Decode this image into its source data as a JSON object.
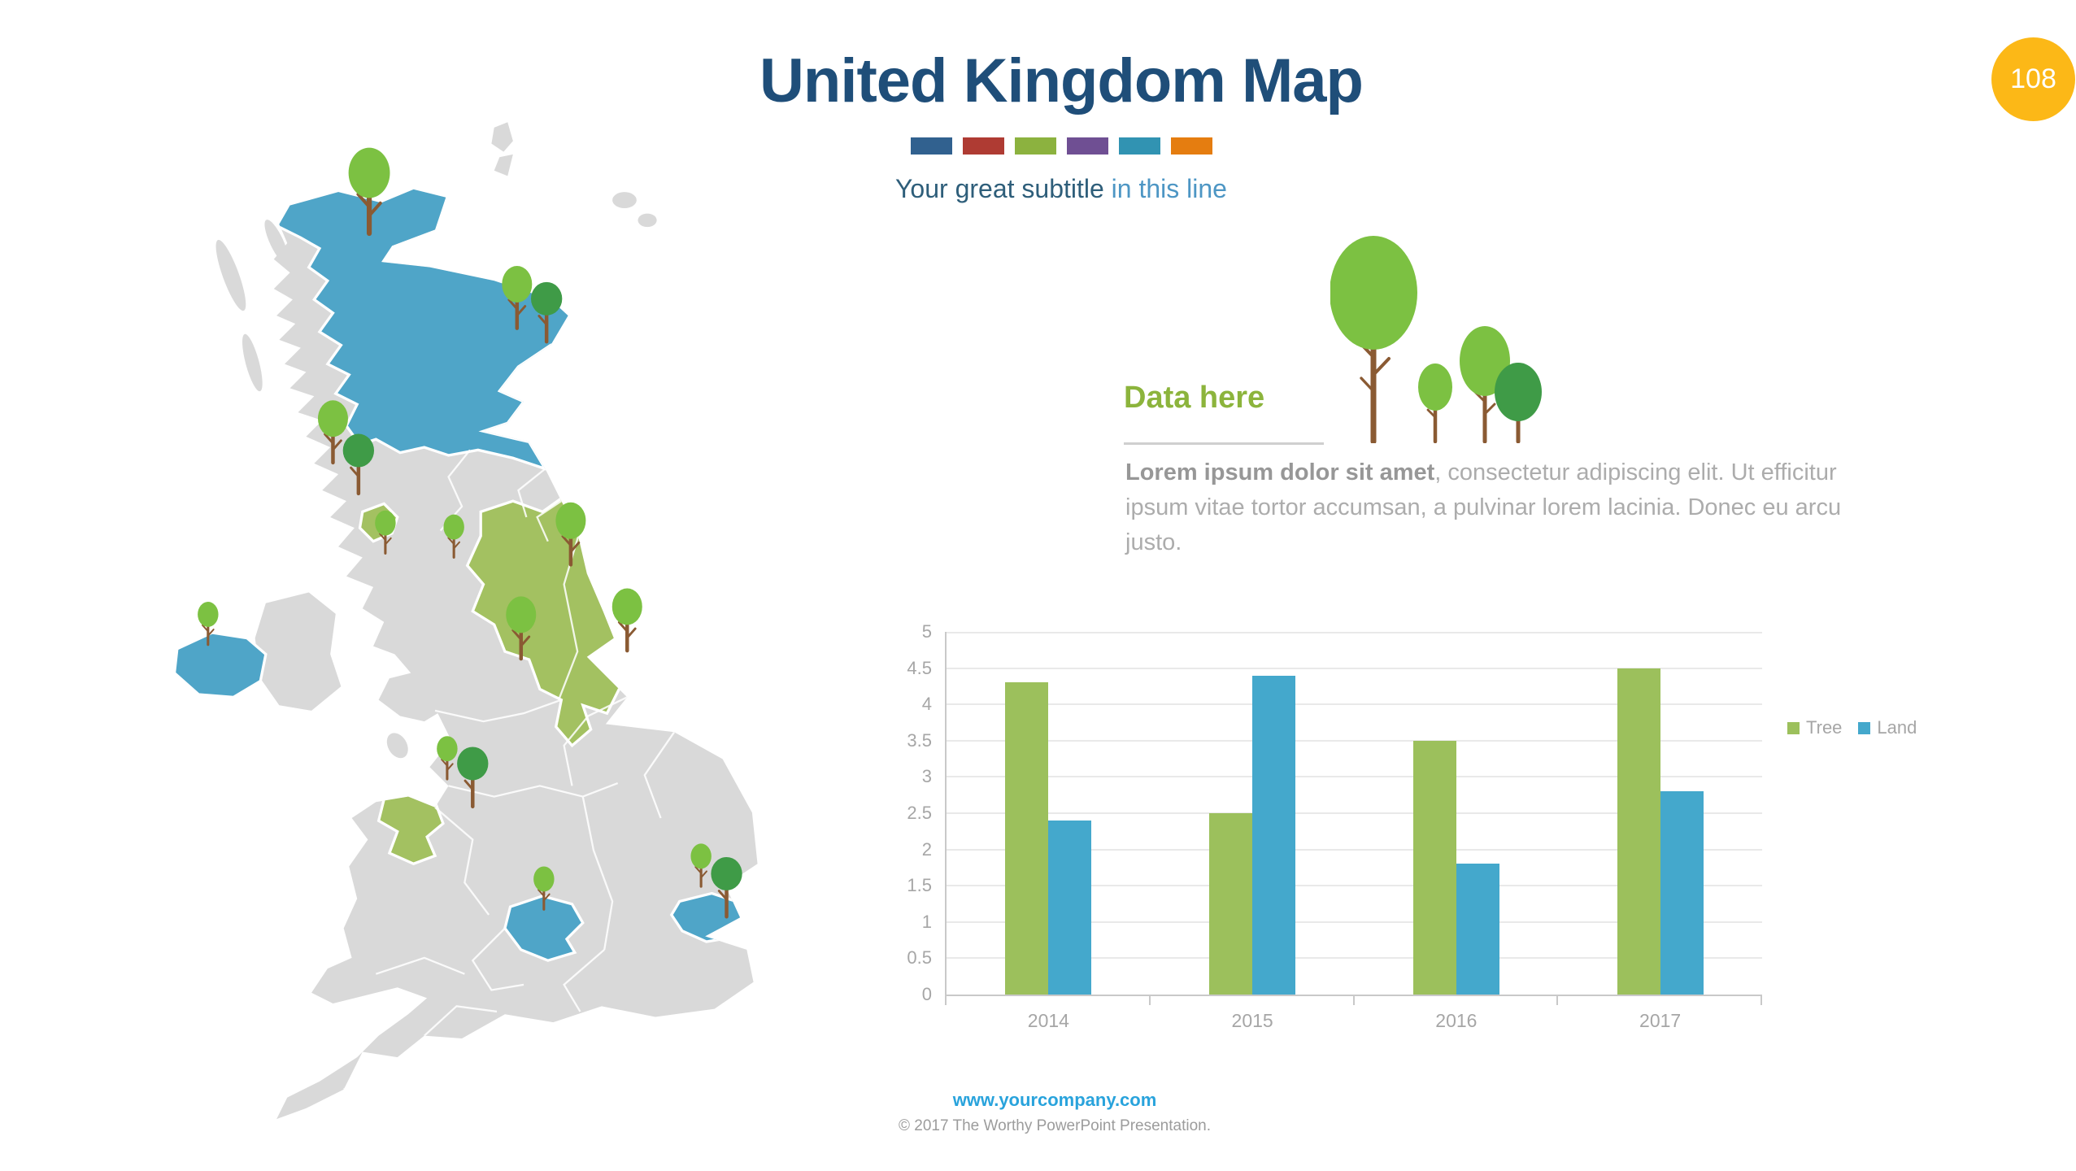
{
  "slide": {
    "title": "United Kingdom Map",
    "subtitle_main": "Your great subtitle",
    "subtitle_accent": "in this line",
    "page_badge": "108",
    "footer_link": "www.yourcompany.com",
    "footer_copyright": "© 2017 The Worthy PowerPoint Presentation."
  },
  "accent_squares": [
    "#31618F",
    "#AF3B33",
    "#8CB23F",
    "#6F4F93",
    "#3193B2",
    "#E57D10"
  ],
  "data_section": {
    "heading": "Data here",
    "body_bold": "Lorem ipsum dolor sit amet",
    "body_rest": ", consectetur adipiscing elit. Ut efficitur ipsum vitae tortor accumsan, a pulvinar lorem lacinia. Donec eu arcu justo."
  },
  "chart_data": {
    "type": "bar",
    "title": "",
    "categories": [
      "2014",
      "2015",
      "2016",
      "2017"
    ],
    "series": [
      {
        "name": "Tree",
        "color": "#9CC05C",
        "values": [
          4.3,
          2.5,
          3.5,
          4.5
        ]
      },
      {
        "name": "Land",
        "color": "#44A8CC",
        "values": [
          2.4,
          4.4,
          1.8,
          2.8
        ]
      }
    ],
    "ylim": [
      0,
      5
    ],
    "yticks": [
      5,
      4.5,
      4,
      3.5,
      3,
      2.5,
      2,
      1.5,
      1,
      0.5,
      0
    ],
    "grid": true,
    "legend_position": "right"
  },
  "colors": {
    "title_blue": "#1F4E79",
    "subtitle_dark": "#2E5E7A",
    "subtitle_light": "#4D96C4",
    "heading_green": "#8CB43C",
    "badge_yellow": "#FCB817",
    "footer_link_blue": "#29A3DC",
    "map_land_gray": "#D9D9D9",
    "map_region_blue": "#4FA5C8",
    "map_region_green": "#A3C161",
    "tree_light_green": "#7CC142",
    "tree_dark_green": "#3F9B47",
    "tree_trunk_brown": "#8A5A33",
    "axis_text_gray": "#A6A6A6"
  }
}
